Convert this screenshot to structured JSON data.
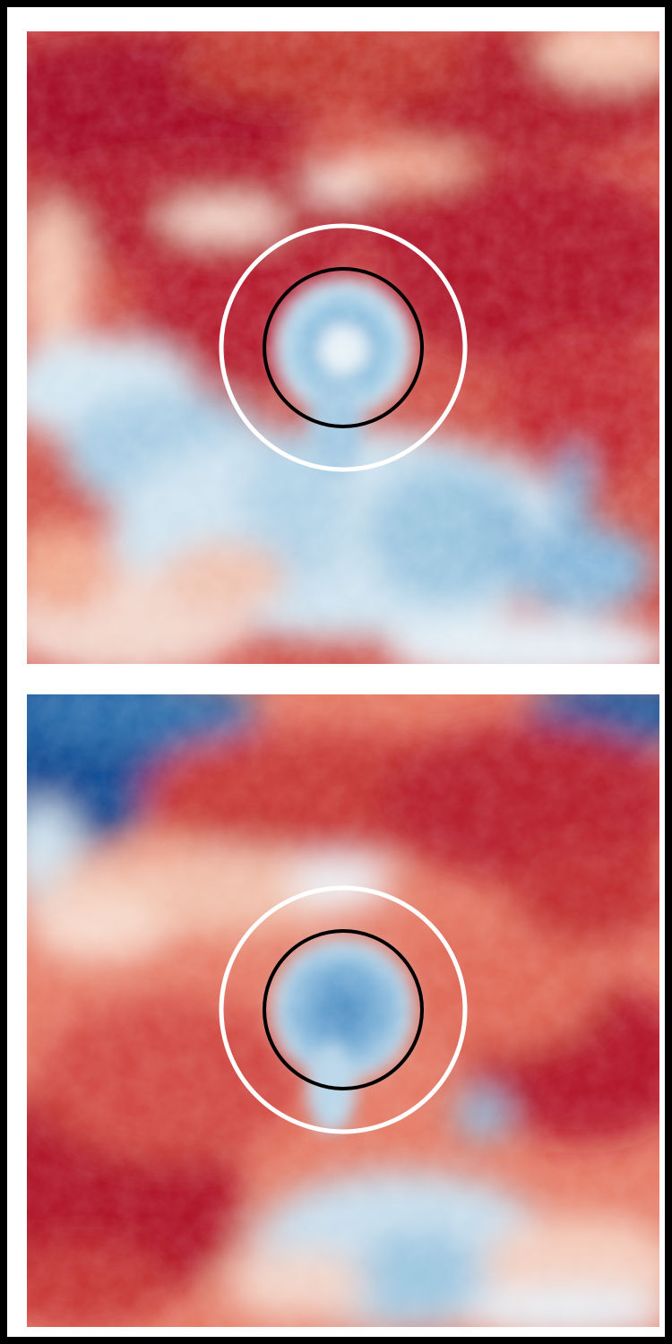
{
  "figure": {
    "panels": [
      {
        "id": "top",
        "colormap": "RdBu_r",
        "markers": [
          "outer-white-circle",
          "inner-black-circle"
        ],
        "colors": {
          "outer_ring": "#ffffff",
          "inner_ring": "#000000"
        }
      },
      {
        "id": "bottom",
        "colormap": "RdBu_r",
        "markers": [
          "outer-white-circle",
          "inner-black-circle"
        ],
        "colors": {
          "outer_ring": "#ffffff",
          "inner_ring": "#000000"
        }
      }
    ],
    "palette": {
      "deep_red": "#a50f26",
      "red": "#cc3a3a",
      "light_red": "#f4a384",
      "pale": "#f7f0ec",
      "light_blue": "#bcd9ea",
      "blue": "#5f9fcd",
      "deep_blue": "#0d4c93"
    }
  }
}
